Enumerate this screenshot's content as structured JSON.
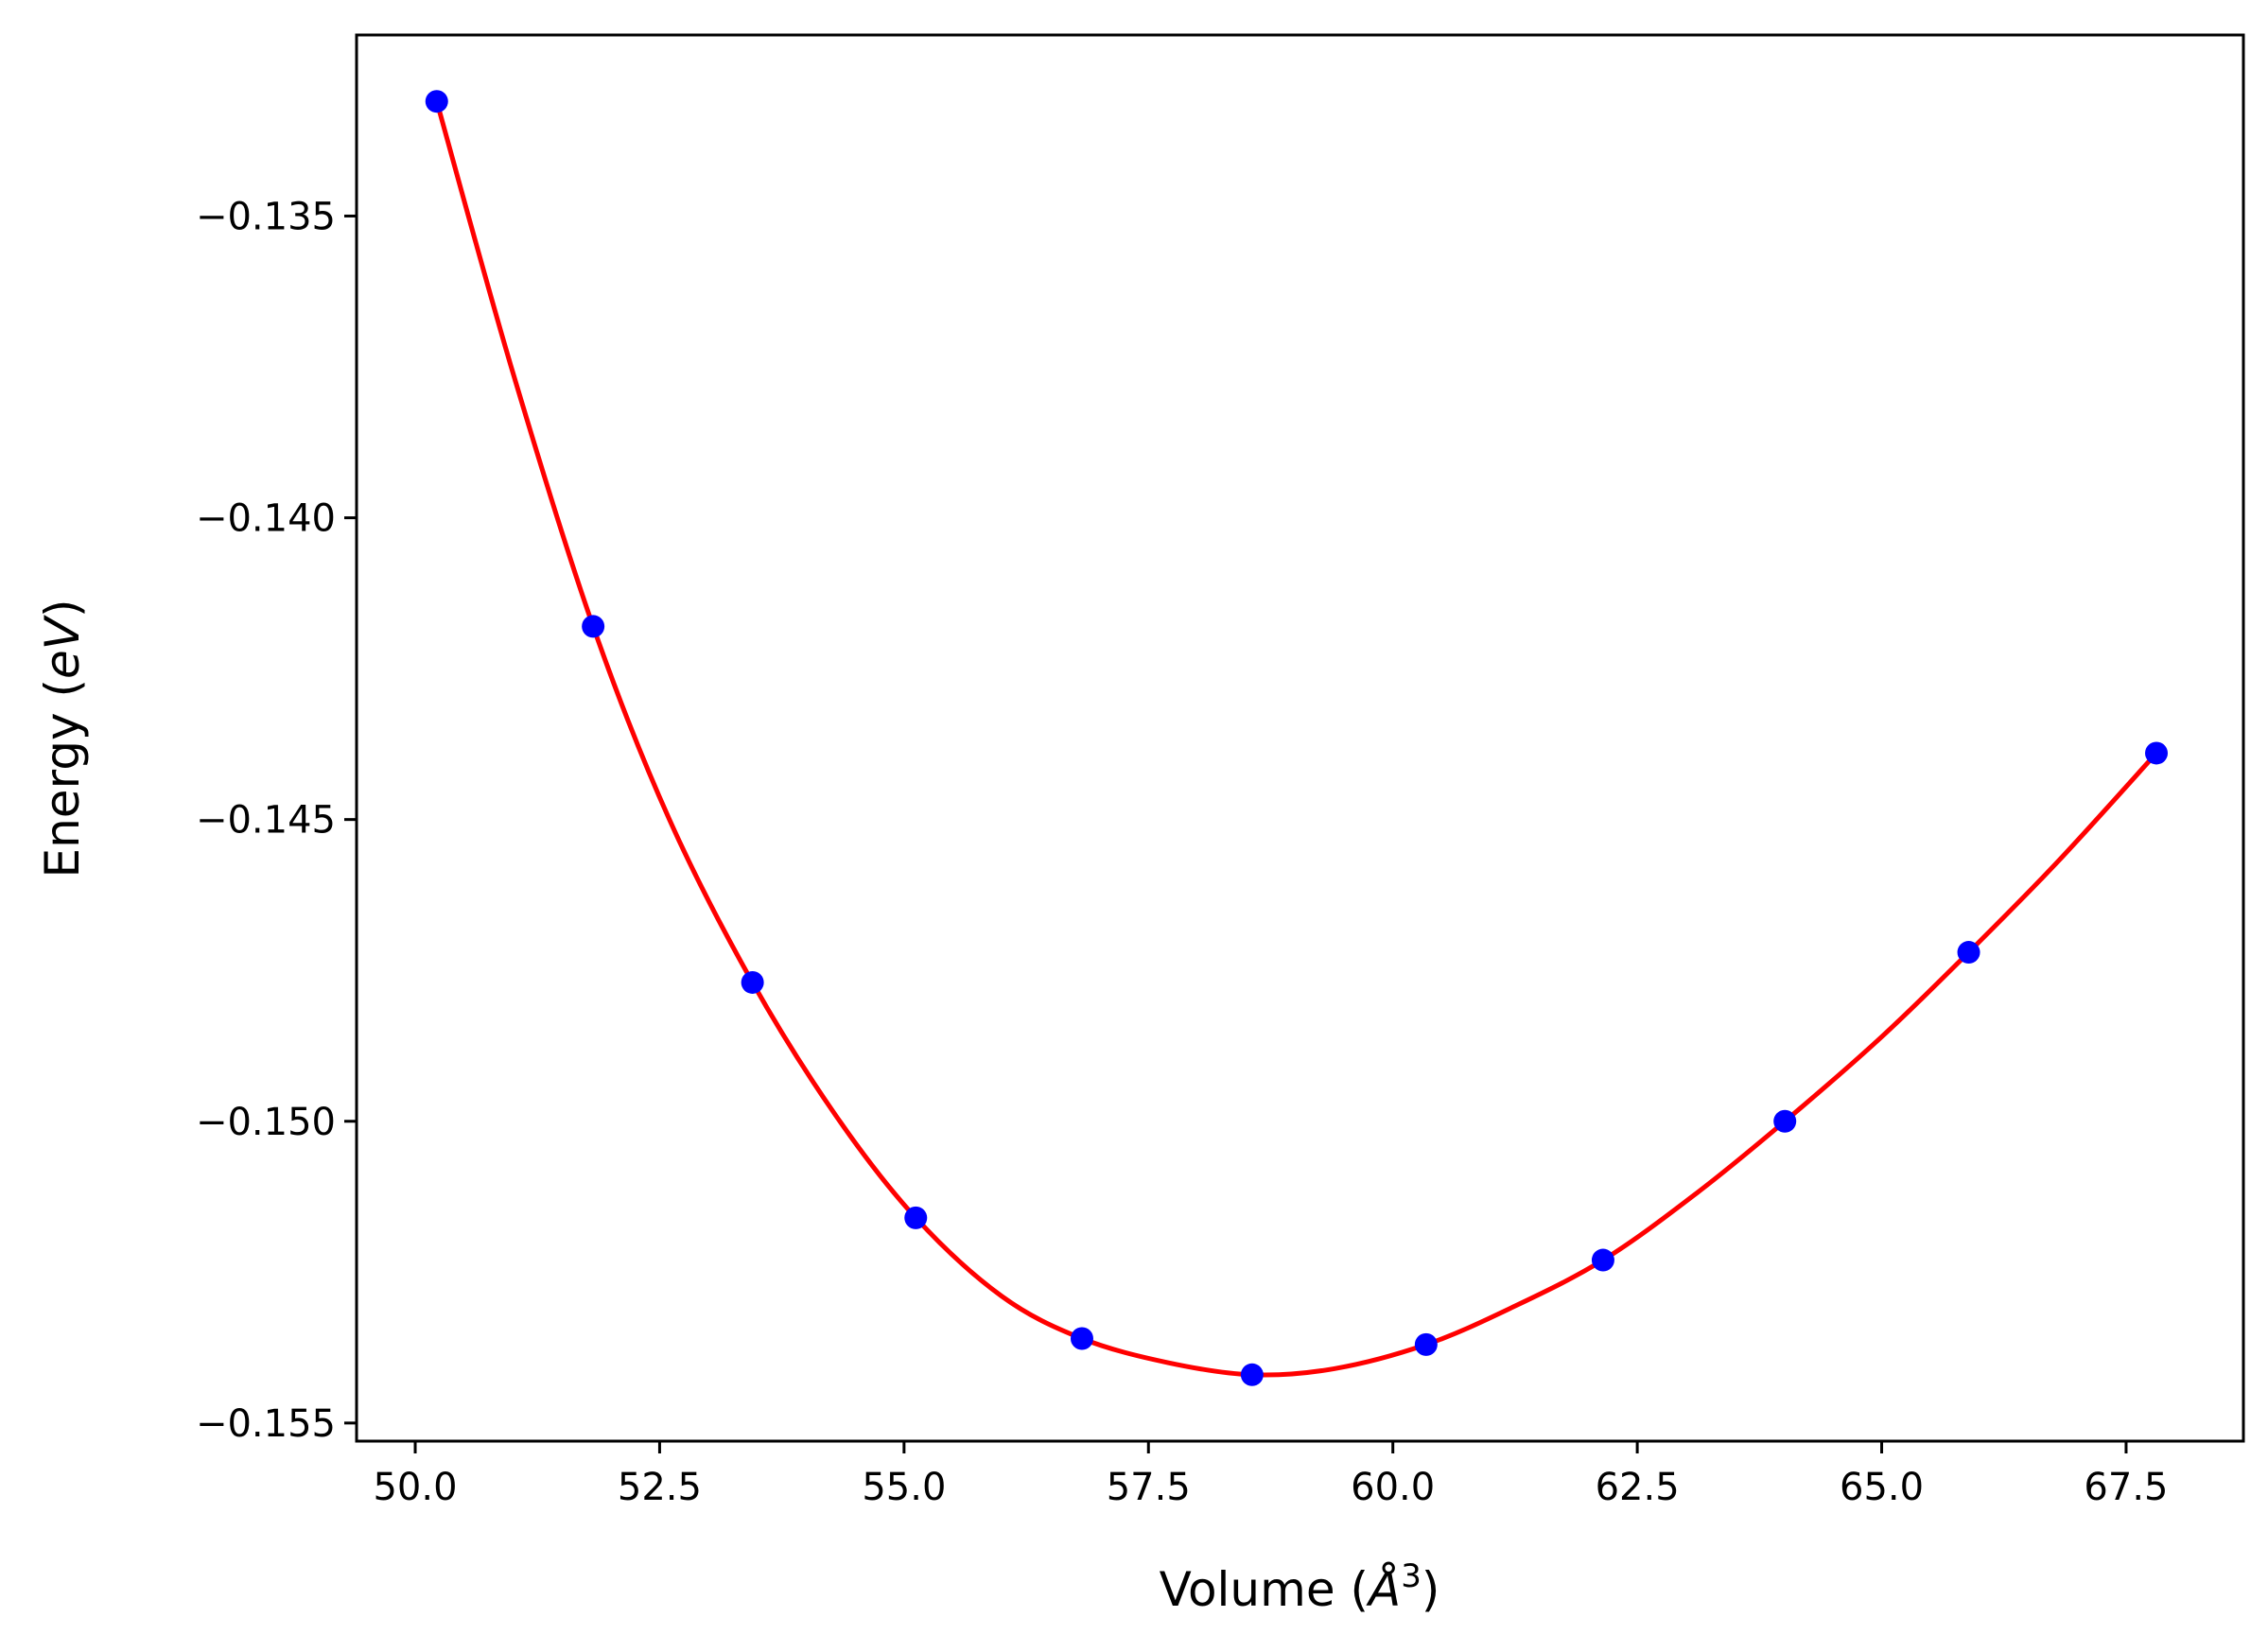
{
  "chart_data": {
    "type": "scatter",
    "title": "",
    "xlabel": "Volume",
    "xlabel_unit_base": "Å",
    "xlabel_unit_exp": "3",
    "ylabel": "Energy",
    "ylabel_unit": "eV",
    "xlim": [
      49.4,
      68.7
    ],
    "ylim": [
      -0.1553,
      -0.132
    ],
    "xticks": [
      50.0,
      52.5,
      55.0,
      57.5,
      60.0,
      62.5,
      65.0,
      67.5
    ],
    "xtick_labels": [
      "50.0",
      "52.5",
      "55.0",
      "57.5",
      "60.0",
      "62.5",
      "65.0",
      "67.5"
    ],
    "yticks": [
      -0.135,
      -0.14,
      -0.145,
      -0.15,
      -0.155
    ],
    "ytick_labels": [
      "−0.135",
      "−0.140",
      "−0.145",
      "−0.150",
      "−0.155"
    ],
    "grid": false,
    "series": [
      {
        "kind": "points",
        "color": "#0000ff",
        "x": [
          50.22,
          51.82,
          53.45,
          55.12,
          56.82,
          58.56,
          60.34,
          62.15,
          64.01,
          65.89,
          67.81
        ],
        "y": [
          -0.1331,
          -0.1418,
          -0.1477,
          -0.1516,
          -0.1536,
          -0.1542,
          -0.1537,
          -0.1523,
          -0.15,
          -0.1472,
          -0.1439
        ]
      },
      {
        "kind": "fit-line",
        "color": "#ff0000",
        "x": [
          50.22,
          51.0,
          51.82,
          52.6,
          53.45,
          54.3,
          55.12,
          56.0,
          56.82,
          57.7,
          58.56,
          59.4,
          60.34,
          61.2,
          62.15,
          63.1,
          64.01,
          65.0,
          65.89,
          66.8,
          67.81
        ],
        "y": [
          -0.1331,
          -0.1376,
          -0.1418,
          -0.145,
          -0.1477,
          -0.1499,
          -0.1516,
          -0.1529,
          -0.1536,
          -0.154,
          -0.1542,
          -0.1541,
          -0.1537,
          -0.1531,
          -0.1523,
          -0.1512,
          -0.15,
          -0.1486,
          -0.1472,
          -0.1457,
          -0.1439
        ]
      }
    ]
  }
}
